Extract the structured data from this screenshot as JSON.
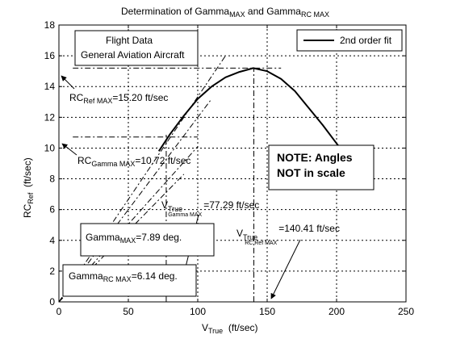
{
  "chart_data": {
    "type": "line",
    "title_parts": [
      "Determination of Gamma",
      "MAX",
      " and Gamma",
      "RC MAX"
    ],
    "xlabel_parts": [
      "V",
      "True",
      "  (ft/sec)"
    ],
    "ylabel_parts": [
      "RC",
      "Ref",
      "  (ft/sec)"
    ],
    "xlim": [
      0,
      250
    ],
    "ylim": [
      0,
      18
    ],
    "xticks": [
      0,
      50,
      100,
      150,
      200,
      250
    ],
    "yticks": [
      0,
      2,
      4,
      6,
      8,
      10,
      12,
      14,
      16,
      18
    ],
    "xtick_labels": [
      "0",
      "50",
      "100",
      "150",
      "200",
      "250"
    ],
    "ytick_labels": [
      "0",
      "2",
      "4",
      "6",
      "8",
      "10",
      "12",
      "14",
      "16",
      "18"
    ],
    "grid": true,
    "legend_position": "top-right",
    "series": [
      {
        "name": "2nd order fit",
        "x": [
          72,
          80,
          90,
          100,
          110,
          120,
          130,
          140,
          150,
          160,
          170,
          180,
          190,
          200,
          210,
          220
        ],
        "y": [
          9.8,
          10.9,
          12.1,
          13.2,
          14.0,
          14.6,
          14.95,
          15.2,
          15.0,
          14.5,
          13.7,
          12.6,
          11.5,
          10.3,
          9.2,
          8.0
        ]
      }
    ],
    "reference_lines": [
      {
        "from": [
          10,
          15.2
        ],
        "to": [
          160,
          15.2
        ]
      },
      {
        "from": [
          10,
          10.72
        ],
        "to": [
          100,
          10.72
        ]
      },
      {
        "from": [
          77.29,
          0
        ],
        "to": [
          77.29,
          10.9
        ]
      },
      {
        "from": [
          140.41,
          0
        ],
        "to": [
          140.41,
          15.2
        ]
      },
      {
        "from": [
          0,
          0
        ],
        "to": [
          120,
          16.0
        ]
      },
      {
        "from": [
          0,
          0
        ],
        "to": [
          110,
          13.2
        ]
      },
      {
        "from": [
          0,
          0
        ],
        "to": [
          100,
          10.1
        ]
      },
      {
        "from": [
          0,
          0
        ],
        "to": [
          90,
          8.3
        ]
      }
    ],
    "annotations": {
      "box1_line1": "Flight Data",
      "box1_line2": "General Aviation Aircraft",
      "rc_ref_max": [
        "RC",
        "Ref MAX",
        "=15.20 ft/sec"
      ],
      "rc_gamma_max": [
        "RC",
        "Gamma MAX",
        "=10.72 ft/sec"
      ],
      "note_line1": "NOTE: Angles",
      "note_line2": "NOT in scale",
      "v_true_gamma_max": [
        "V",
        "True",
        "Gamma MAX",
        "=77.29 ft/sec"
      ],
      "v_true_rc_ref_max": [
        "V",
        "True",
        "RC Ref MAX",
        "=140.41 ft/sec"
      ],
      "gamma_max": [
        "Gamma",
        "MAX",
        "=7.89 deg."
      ],
      "gamma_rc_max": [
        "Gamma",
        "RC MAX",
        "=6.14 deg."
      ]
    }
  }
}
